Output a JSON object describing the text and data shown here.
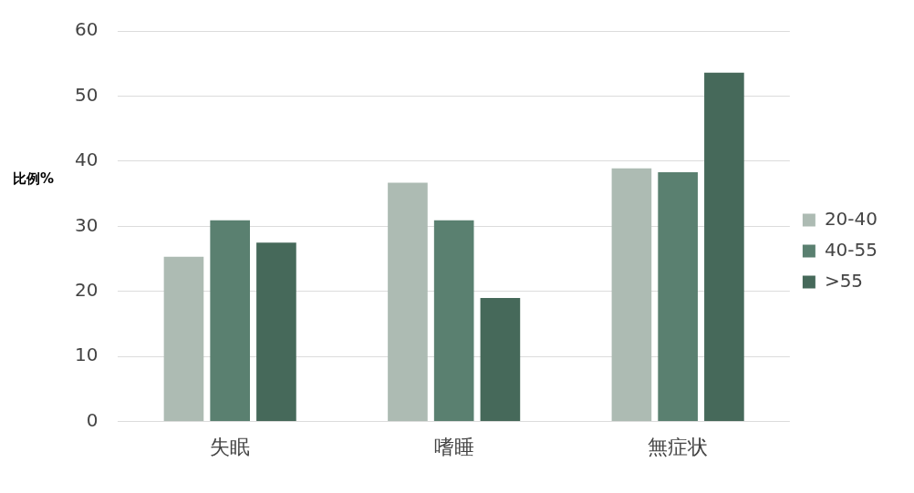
{
  "chart_data": {
    "type": "bar",
    "ylabel": "比例%",
    "categories": [
      "失眠",
      "嗜睡",
      "無症状"
    ],
    "series": [
      {
        "name": "20-40",
        "color": "#adbbb3",
        "values": [
          25.3,
          36.7,
          38.9
        ]
      },
      {
        "name": "40-55",
        "color": "#5a8070",
        "values": [
          30.9,
          30.9,
          38.3
        ]
      },
      {
        "name": ">55",
        "color": "#46695a",
        "values": [
          27.5,
          19.0,
          53.6
        ]
      }
    ],
    "ylim": [
      0,
      60
    ],
    "yticks": [
      0,
      10,
      20,
      30,
      40,
      50,
      60
    ],
    "grid": "y",
    "legend": "right"
  }
}
